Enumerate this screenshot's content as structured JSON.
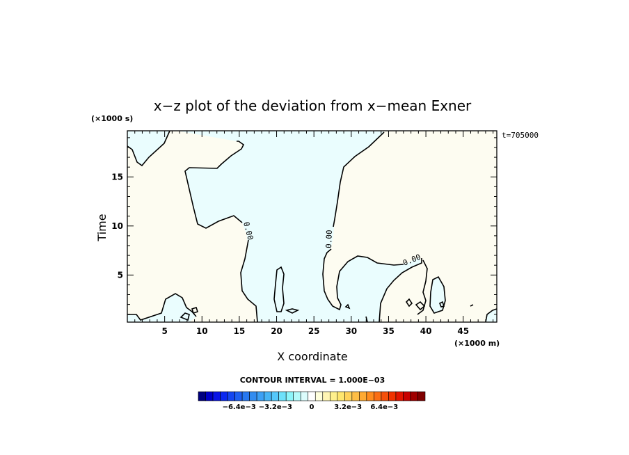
{
  "chart_data": {
    "type": "contour",
    "title": "x−z plot of the deviation from x−mean Exner",
    "xlabel": "X coordinate",
    "ylabel": "Time",
    "x_unit": "(×1000 m)",
    "y_unit": "(×1000 s)",
    "time_stamp": "t=705000",
    "xlim": [
      0,
      49.5
    ],
    "ylim": [
      0.2,
      19.7
    ],
    "x_ticks": [
      5,
      10,
      15,
      20,
      25,
      30,
      35,
      40,
      45
    ],
    "y_ticks": [
      5,
      10,
      15
    ],
    "x_tick_labels": [
      "5",
      "10",
      "15",
      "20",
      "25",
      "30",
      "35",
      "40",
      "45"
    ],
    "y_tick_labels": [
      "5",
      "10",
      "15"
    ],
    "contour_labels": [
      "0.00",
      "0.00",
      "0.00"
    ],
    "contour_interval_text": "CONTOUR INTERVAL = 1.000E−03",
    "fill_colors": {
      "positive": "#fdfcf1",
      "negative": "#eafdfe"
    },
    "colorbar": {
      "tick_labels": [
        "−6.4e−3",
        "−3.2e−3",
        "0",
        "3.2e−3",
        "6.4e−3"
      ],
      "tick_values": [
        -0.0064,
        -0.0032,
        0,
        0.0032,
        0.0064
      ],
      "range": [
        -0.01,
        0.01
      ],
      "colors": [
        "#00007f",
        "#0000c8",
        "#0a14e6",
        "#0a28f0",
        "#1446f0",
        "#1e5ff0",
        "#2878f0",
        "#328cf0",
        "#3ca0f5",
        "#46b4f5",
        "#55c8fa",
        "#6ee1fa",
        "#8cf5fa",
        "#b4fafa",
        "#dcfdfd",
        "#ffffff",
        "#ffffdc",
        "#fff5b4",
        "#fff08c",
        "#ffe66e",
        "#ffd25a",
        "#ffbe46",
        "#ffaa32",
        "#ff8c1e",
        "#fa6e14",
        "#f5500a",
        "#f03200",
        "#e11400",
        "#c80000",
        "#a00000",
        "#7f0000"
      ]
    }
  }
}
